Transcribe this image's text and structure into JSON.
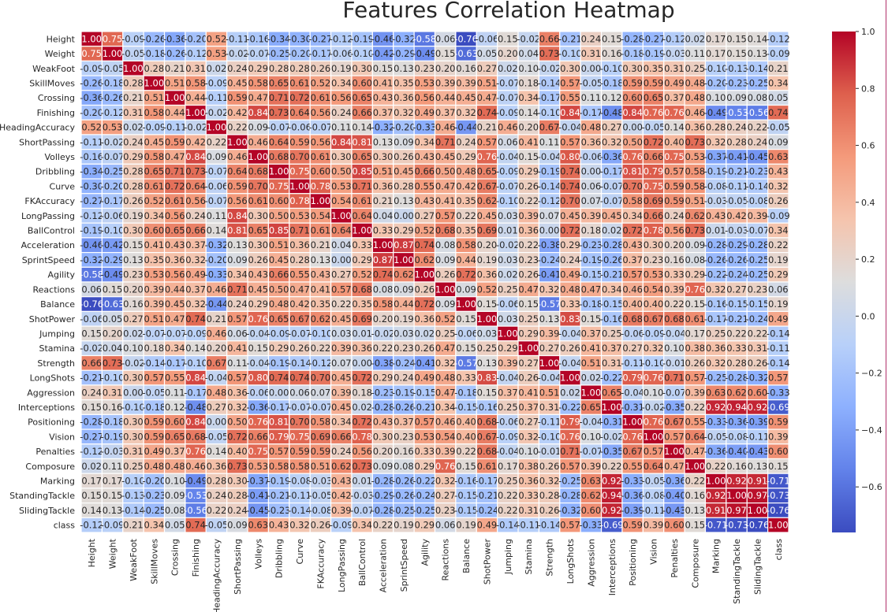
{
  "chart_data": {
    "type": "heatmap",
    "title": "Features Correlation Heatmap",
    "labels": [
      "Height",
      "Weight",
      "WeakFoot",
      "SkillMoves",
      "Crossing",
      "Finishing",
      "HeadingAccuracy",
      "ShortPassing",
      "Volleys",
      "Dribbling",
      "Curve",
      "FKAccuracy",
      "LongPassing",
      "BallControl",
      "Acceleration",
      "SprintSpeed",
      "Agility",
      "Reactions",
      "Balance",
      "ShotPower",
      "Jumping",
      "Stamina",
      "Strength",
      "LongShots",
      "Aggression",
      "Interceptions",
      "Positioning",
      "Vision",
      "Penalties",
      "Composure",
      "Marking",
      "StandingTackle",
      "SlidingTackle",
      "class"
    ],
    "matrix": [
      [
        1.0,
        0.75,
        -0.09,
        -0.26,
        -0.36,
        -0.2,
        0.52,
        -0.11,
        -0.16,
        -0.34,
        -0.3,
        -0.27,
        -0.12,
        -0.19,
        -0.46,
        -0.32,
        -0.58,
        0.06,
        -0.76,
        -0.06,
        0.15,
        -0.02,
        0.66,
        -0.21,
        0.24,
        0.15,
        -0.28,
        -0.27,
        -0.12,
        0.02,
        0.17,
        0.15,
        0.14,
        -0.12
      ],
      [
        0.75,
        1.0,
        -0.05,
        -0.18,
        -0.26,
        -0.12,
        0.53,
        -0.02,
        -0.07,
        -0.25,
        -0.2,
        -0.17,
        -0.06,
        -0.1,
        -0.42,
        -0.29,
        -0.49,
        0.15,
        -0.63,
        0.05,
        0.2,
        0.04,
        0.73,
        -0.1,
        0.31,
        0.16,
        -0.18,
        -0.19,
        -0.03,
        0.11,
        0.17,
        0.15,
        0.13,
        -0.09
      ],
      [
        -0.09,
        -0.05,
        1.0,
        0.28,
        0.21,
        0.31,
        0.02,
        0.24,
        0.29,
        0.28,
        0.28,
        0.26,
        0.19,
        0.3,
        0.15,
        0.13,
        0.23,
        0.2,
        0.16,
        0.27,
        0.02,
        0.1,
        -0.02,
        0.3,
        -0.0,
        -0.1,
        0.3,
        0.35,
        0.31,
        0.25,
        -0.1,
        -0.13,
        -0.14,
        0.21
      ],
      [
        -0.26,
        -0.18,
        0.28,
        1.0,
        0.51,
        0.58,
        -0.09,
        0.45,
        0.58,
        0.65,
        0.61,
        0.52,
        0.34,
        0.6,
        0.41,
        0.35,
        0.53,
        0.39,
        0.39,
        0.51,
        -0.07,
        0.18,
        -0.14,
        0.57,
        -0.05,
        -0.18,
        0.59,
        0.59,
        0.49,
        0.48,
        -0.2,
        -0.23,
        -0.25,
        0.34
      ],
      [
        -0.36,
        -0.26,
        0.21,
        0.51,
        1.0,
        0.44,
        -0.11,
        0.59,
        0.47,
        0.71,
        0.72,
        0.61,
        0.56,
        0.65,
        0.43,
        0.36,
        0.56,
        0.44,
        0.45,
        0.47,
        -0.07,
        0.34,
        -0.17,
        0.55,
        0.11,
        0.12,
        0.6,
        0.65,
        0.37,
        0.48,
        0.1,
        0.09,
        0.08,
        0.05
      ],
      [
        -0.2,
        -0.12,
        0.31,
        0.58,
        0.44,
        1.0,
        -0.02,
        0.42,
        0.84,
        0.73,
        0.64,
        0.56,
        0.24,
        0.66,
        0.37,
        0.32,
        0.49,
        0.37,
        0.32,
        0.74,
        -0.09,
        0.14,
        -0.1,
        0.84,
        -0.17,
        -0.48,
        0.84,
        0.76,
        0.76,
        0.46,
        -0.49,
        -0.53,
        -0.56,
        0.74
      ],
      [
        0.52,
        0.53,
        0.02,
        -0.09,
        -0.11,
        -0.02,
        1.0,
        0.22,
        0.09,
        -0.07,
        -0.06,
        -0.07,
        0.11,
        0.14,
        -0.32,
        -0.2,
        -0.33,
        0.46,
        -0.44,
        0.21,
        0.46,
        0.2,
        0.67,
        -0.04,
        0.48,
        0.27,
        -0.0,
        -0.05,
        0.14,
        0.36,
        0.28,
        0.24,
        0.22,
        -0.05
      ],
      [
        -0.11,
        -0.02,
        0.24,
        0.45,
        0.59,
        0.42,
        0.22,
        1.0,
        0.46,
        0.64,
        0.59,
        0.56,
        0.84,
        0.81,
        0.13,
        0.09,
        0.34,
        0.71,
        0.24,
        0.57,
        0.06,
        0.41,
        0.11,
        0.57,
        0.36,
        0.32,
        0.5,
        0.72,
        0.4,
        0.73,
        0.32,
        0.28,
        0.24,
        0.09
      ],
      [
        -0.16,
        -0.07,
        0.29,
        0.58,
        0.47,
        0.84,
        0.09,
        0.46,
        1.0,
        0.68,
        0.7,
        0.61,
        0.3,
        0.65,
        0.3,
        0.26,
        0.43,
        0.45,
        0.29,
        0.76,
        -0.04,
        0.15,
        -0.04,
        0.8,
        -0.06,
        -0.36,
        0.76,
        0.66,
        0.75,
        0.53,
        -0.37,
        -0.41,
        -0.45,
        0.63
      ],
      [
        -0.34,
        -0.25,
        0.28,
        0.65,
        0.71,
        0.73,
        -0.07,
        0.64,
        0.68,
        1.0,
        0.75,
        0.6,
        0.5,
        0.85,
        0.51,
        0.45,
        0.66,
        0.5,
        0.48,
        0.65,
        -0.09,
        0.29,
        -0.19,
        0.74,
        -0.0,
        -0.17,
        0.81,
        0.79,
        0.57,
        0.58,
        -0.19,
        -0.21,
        -0.23,
        0.43
      ],
      [
        -0.3,
        -0.2,
        0.28,
        0.61,
        0.72,
        0.64,
        -0.06,
        0.59,
        0.7,
        0.75,
        1.0,
        0.78,
        0.53,
        0.71,
        0.36,
        0.28,
        0.55,
        0.47,
        0.42,
        0.67,
        -0.07,
        0.26,
        -0.14,
        0.74,
        0.06,
        -0.07,
        0.7,
        0.75,
        0.59,
        0.58,
        -0.08,
        -0.11,
        -0.14,
        0.32
      ],
      [
        -0.27,
        -0.17,
        0.26,
        0.52,
        0.61,
        0.56,
        -0.07,
        0.56,
        0.61,
        0.6,
        0.78,
        1.0,
        0.54,
        0.61,
        0.21,
        0.13,
        0.43,
        0.41,
        0.35,
        0.62,
        -0.1,
        0.22,
        -0.12,
        0.7,
        0.07,
        -0.07,
        0.58,
        0.69,
        0.59,
        0.51,
        -0.03,
        -0.05,
        -0.08,
        0.26
      ],
      [
        -0.12,
        -0.06,
        0.19,
        0.34,
        0.56,
        0.24,
        0.11,
        0.84,
        0.3,
        0.5,
        0.53,
        0.54,
        1.0,
        0.64,
        0.04,
        -0.0,
        0.27,
        0.57,
        0.22,
        0.45,
        0.03,
        0.39,
        0.07,
        0.45,
        0.39,
        0.45,
        0.34,
        0.66,
        0.24,
        0.62,
        0.43,
        0.42,
        0.39,
        -0.09
      ],
      [
        -0.19,
        -0.1,
        0.3,
        0.6,
        0.65,
        0.66,
        0.14,
        0.81,
        0.65,
        0.85,
        0.71,
        0.61,
        0.64,
        1.0,
        0.33,
        0.29,
        0.52,
        0.68,
        0.35,
        0.69,
        0.01,
        0.36,
        0.0,
        0.72,
        0.18,
        0.02,
        0.72,
        0.78,
        0.56,
        0.73,
        0.01,
        -0.03,
        -0.07,
        0.34
      ],
      [
        -0.46,
        -0.42,
        0.15,
        0.41,
        0.43,
        0.37,
        -0.32,
        0.13,
        0.3,
        0.51,
        0.36,
        0.21,
        0.04,
        0.33,
        1.0,
        0.87,
        0.74,
        0.08,
        0.58,
        0.2,
        -0.02,
        0.22,
        -0.38,
        0.29,
        -0.23,
        -0.28,
        0.43,
        0.3,
        0.2,
        0.09,
        -0.28,
        -0.29,
        -0.28,
        0.22
      ],
      [
        -0.32,
        -0.29,
        0.13,
        0.35,
        0.36,
        0.32,
        -0.2,
        0.09,
        0.26,
        0.45,
        0.28,
        0.13,
        -0.0,
        0.29,
        0.87,
        1.0,
        0.62,
        0.09,
        0.44,
        0.19,
        0.03,
        0.23,
        -0.24,
        0.24,
        -0.19,
        -0.26,
        0.37,
        0.23,
        0.16,
        0.08,
        -0.26,
        -0.26,
        -0.25,
        0.19
      ],
      [
        -0.58,
        -0.49,
        0.23,
        0.53,
        0.56,
        0.49,
        -0.33,
        0.34,
        0.43,
        0.66,
        0.55,
        0.43,
        0.27,
        0.52,
        0.74,
        0.62,
        1.0,
        0.26,
        0.72,
        0.36,
        0.02,
        0.26,
        -0.41,
        0.49,
        -0.15,
        -0.21,
        0.57,
        0.53,
        0.33,
        0.29,
        -0.22,
        -0.24,
        -0.25,
        0.29
      ],
      [
        0.06,
        0.15,
        0.2,
        0.39,
        0.44,
        0.37,
        0.46,
        0.71,
        0.45,
        0.5,
        0.47,
        0.41,
        0.57,
        0.68,
        0.08,
        0.09,
        0.26,
        1.0,
        0.09,
        0.52,
        0.25,
        0.47,
        0.32,
        0.48,
        0.47,
        0.34,
        0.46,
        0.54,
        0.39,
        0.76,
        0.32,
        0.27,
        0.23,
        0.06
      ],
      [
        -0.76,
        -0.63,
        0.16,
        0.39,
        0.45,
        0.32,
        -0.44,
        0.24,
        0.29,
        0.48,
        0.42,
        0.35,
        0.22,
        0.35,
        0.58,
        0.44,
        0.72,
        0.09,
        1.0,
        0.15,
        -0.06,
        0.15,
        -0.57,
        0.33,
        -0.18,
        -0.15,
        0.4,
        0.4,
        0.22,
        0.15,
        -0.16,
        -0.15,
        -0.15,
        0.19
      ],
      [
        -0.06,
        0.05,
        0.27,
        0.51,
        0.47,
        0.74,
        0.21,
        0.57,
        0.76,
        0.65,
        0.67,
        0.62,
        0.45,
        0.69,
        0.2,
        0.19,
        0.36,
        0.52,
        0.15,
        1.0,
        0.03,
        0.25,
        0.13,
        0.83,
        0.15,
        -0.16,
        0.68,
        0.67,
        0.68,
        0.61,
        -0.17,
        -0.21,
        -0.24,
        0.49
      ],
      [
        0.15,
        0.2,
        0.02,
        -0.07,
        -0.07,
        -0.09,
        0.46,
        0.06,
        -0.04,
        -0.09,
        -0.07,
        -0.1,
        0.03,
        0.01,
        -0.02,
        0.03,
        0.02,
        0.25,
        -0.06,
        0.03,
        1.0,
        0.29,
        0.39,
        -0.04,
        0.37,
        0.25,
        -0.06,
        -0.09,
        -0.04,
        0.17,
        0.25,
        0.22,
        0.22,
        -0.14
      ],
      [
        -0.02,
        0.04,
        0.1,
        0.18,
        0.34,
        0.14,
        0.2,
        0.41,
        0.15,
        0.29,
        0.26,
        0.22,
        0.39,
        0.36,
        0.22,
        0.23,
        0.26,
        0.47,
        0.15,
        0.25,
        0.29,
        1.0,
        0.27,
        0.26,
        0.41,
        0.37,
        0.27,
        0.32,
        0.1,
        0.38,
        0.36,
        0.33,
        0.31,
        -0.11
      ],
      [
        0.66,
        0.73,
        -0.02,
        -0.14,
        -0.17,
        -0.1,
        0.67,
        0.11,
        -0.04,
        -0.19,
        -0.14,
        -0.12,
        0.07,
        0.0,
        -0.38,
        -0.24,
        -0.41,
        0.32,
        -0.57,
        0.13,
        0.39,
        0.27,
        1.0,
        -0.04,
        0.51,
        0.31,
        -0.11,
        -0.1,
        -0.01,
        0.26,
        0.32,
        0.28,
        0.26,
        -0.14
      ],
      [
        -0.21,
        -0.1,
        0.3,
        0.57,
        0.55,
        0.84,
        -0.04,
        0.57,
        0.8,
        0.74,
        0.74,
        0.7,
        0.45,
        0.72,
        0.29,
        0.24,
        0.49,
        0.48,
        0.33,
        0.83,
        -0.04,
        0.26,
        -0.04,
        1.0,
        0.02,
        -0.22,
        0.79,
        0.76,
        0.71,
        0.57,
        -0.25,
        -0.28,
        -0.32,
        0.57
      ],
      [
        0.24,
        0.31,
        -0.0,
        -0.05,
        0.11,
        -0.17,
        0.48,
        0.36,
        -0.06,
        -0.0,
        0.06,
        0.07,
        0.39,
        0.18,
        -0.23,
        -0.19,
        -0.15,
        0.47,
        -0.18,
        0.15,
        0.37,
        0.41,
        0.51,
        0.02,
        1.0,
        0.65,
        -0.04,
        0.1,
        -0.07,
        0.39,
        0.63,
        0.62,
        0.6,
        -0.33
      ],
      [
        0.15,
        0.16,
        -0.1,
        -0.18,
        0.12,
        -0.48,
        0.27,
        0.32,
        -0.36,
        -0.17,
        -0.07,
        -0.07,
        0.45,
        0.02,
        -0.28,
        -0.26,
        -0.21,
        0.34,
        -0.15,
        -0.16,
        0.25,
        0.37,
        0.31,
        -0.22,
        0.65,
        1.0,
        -0.31,
        -0.02,
        -0.35,
        0.22,
        0.92,
        0.94,
        0.92,
        -0.69
      ],
      [
        -0.28,
        -0.18,
        0.3,
        0.59,
        0.6,
        0.84,
        -0.0,
        0.5,
        0.76,
        0.81,
        0.7,
        0.58,
        0.34,
        0.72,
        0.43,
        0.37,
        0.57,
        0.46,
        0.4,
        0.68,
        -0.06,
        0.27,
        -0.11,
        0.79,
        -0.04,
        -0.31,
        1.0,
        0.76,
        0.67,
        0.55,
        -0.33,
        -0.36,
        -0.39,
        0.59
      ],
      [
        -0.27,
        -0.19,
        0.3,
        0.59,
        0.65,
        0.68,
        -0.05,
        0.72,
        0.66,
        0.79,
        0.75,
        0.69,
        0.66,
        0.78,
        0.3,
        0.23,
        0.53,
        0.54,
        0.4,
        0.67,
        -0.09,
        0.32,
        -0.1,
        0.76,
        0.1,
        -0.02,
        0.76,
        1.0,
        0.57,
        0.64,
        -0.05,
        -0.08,
        -0.11,
        0.39
      ],
      [
        -0.12,
        -0.03,
        0.31,
        0.49,
        0.37,
        0.76,
        0.14,
        0.4,
        0.75,
        0.57,
        0.59,
        0.59,
        0.24,
        0.56,
        0.2,
        0.16,
        0.33,
        0.39,
        0.22,
        0.68,
        -0.04,
        0.1,
        -0.01,
        0.71,
        -0.07,
        -0.35,
        0.67,
        0.57,
        1.0,
        0.47,
        -0.36,
        -0.4,
        -0.43,
        0.6
      ],
      [
        0.02,
        0.11,
        0.25,
        0.48,
        0.48,
        0.46,
        0.36,
        0.73,
        0.53,
        0.58,
        0.58,
        0.51,
        0.62,
        0.73,
        0.09,
        0.08,
        0.29,
        0.76,
        0.15,
        0.61,
        0.17,
        0.38,
        0.26,
        0.57,
        0.39,
        0.22,
        0.55,
        0.64,
        0.47,
        1.0,
        0.22,
        0.16,
        0.13,
        0.15
      ],
      [
        0.17,
        0.17,
        -0.1,
        -0.2,
        0.1,
        -0.49,
        0.28,
        0.3,
        -0.37,
        -0.19,
        -0.08,
        -0.03,
        0.43,
        0.01,
        -0.28,
        -0.26,
        -0.22,
        0.32,
        -0.16,
        -0.17,
        0.25,
        0.36,
        0.32,
        -0.25,
        0.63,
        0.92,
        -0.33,
        -0.05,
        -0.36,
        0.22,
        1.0,
        0.92,
        0.91,
        -0.71
      ],
      [
        0.15,
        0.15,
        -0.13,
        -0.23,
        0.09,
        -0.53,
        0.24,
        0.28,
        -0.41,
        -0.21,
        -0.11,
        -0.05,
        0.42,
        -0.03,
        -0.29,
        -0.26,
        -0.24,
        0.27,
        -0.15,
        -0.21,
        0.22,
        0.33,
        0.28,
        -0.28,
        0.62,
        0.94,
        -0.36,
        -0.08,
        -0.4,
        0.16,
        0.92,
        1.0,
        0.97,
        -0.73
      ],
      [
        0.14,
        0.13,
        -0.14,
        -0.25,
        0.08,
        -0.56,
        0.22,
        0.24,
        -0.45,
        -0.23,
        -0.14,
        -0.08,
        0.39,
        -0.07,
        -0.28,
        -0.25,
        -0.25,
        0.23,
        -0.15,
        -0.24,
        0.22,
        0.31,
        0.26,
        -0.32,
        0.6,
        0.92,
        -0.39,
        -0.11,
        -0.43,
        0.13,
        0.91,
        0.97,
        1.0,
        -0.76
      ],
      [
        -0.12,
        -0.09,
        0.21,
        0.34,
        0.05,
        0.74,
        -0.05,
        0.09,
        0.63,
        0.43,
        0.32,
        0.26,
        -0.09,
        0.34,
        0.22,
        0.19,
        0.29,
        0.06,
        0.19,
        0.49,
        -0.14,
        -0.11,
        -0.14,
        0.57,
        -0.33,
        -0.69,
        0.59,
        0.39,
        0.6,
        0.15,
        -0.71,
        -0.73,
        -0.76,
        1.0
      ]
    ],
    "colorbar": {
      "ticks": [
        "1.0",
        "0.8",
        "0.6",
        "0.4",
        "0.2",
        "0.0",
        "−0.2",
        "−0.4",
        "−0.6"
      ],
      "tick_values": [
        1.0,
        0.8,
        0.6,
        0.4,
        0.2,
        0.0,
        -0.2,
        -0.4,
        -0.6
      ],
      "range": [
        -0.76,
        1.0
      ],
      "colormap": "coolwarm",
      "low_color": "#3b4cc0",
      "mid_color": "#dddddd",
      "high_color": "#b40426"
    },
    "grid_line_color": "#ffffff"
  }
}
